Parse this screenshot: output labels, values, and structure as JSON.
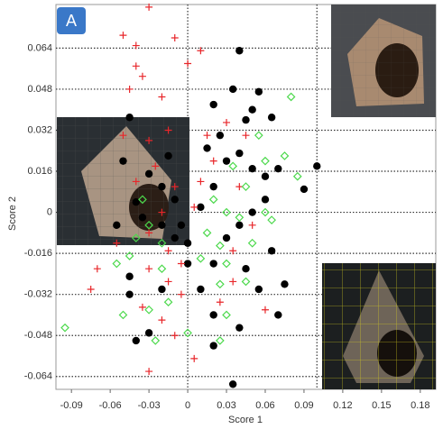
{
  "chart_data": {
    "type": "scatter",
    "panel_label": "A",
    "x_label": "Score 1",
    "y_label": "Score 2",
    "xlim": [
      -0.102,
      0.192
    ],
    "ylim": [
      -0.069,
      0.081
    ],
    "xticks": [
      -0.09,
      -0.06,
      -0.03,
      0,
      0.03,
      0.06,
      0.09,
      0.12,
      0.15,
      0.18
    ],
    "yticks": [
      -0.064,
      -0.048,
      -0.032,
      -0.016,
      0,
      0.016,
      0.032,
      0.048,
      0.064
    ],
    "grid": true,
    "xgrid": [
      0,
      0.1
    ],
    "series": [
      {
        "marker": "circle",
        "color": "#000000",
        "x": [
          0.04,
          0.02,
          0.035,
          0.055,
          0.05,
          0.065,
          0.045,
          -0.045,
          -0.05,
          -0.03,
          -0.02,
          -0.01,
          -0.04,
          -0.035,
          -0.02,
          -0.01,
          0,
          0.01,
          0.02,
          0.03,
          0.04,
          0.05,
          0.06,
          0.07,
          0.1,
          0.09,
          0.06,
          0.05,
          0.04,
          0.03,
          0.02,
          0.045,
          0.055,
          0.075,
          0.07,
          0.04,
          0.02,
          0.01,
          -0.02,
          -0.045,
          -0.045,
          -0.04,
          -0.03,
          0.02,
          0.035,
          0,
          -0.005,
          0.025,
          0.015,
          -0.015,
          0.065,
          -0.055
        ],
        "values": [
          0.063,
          0.042,
          0.048,
          0.047,
          0.04,
          0.037,
          0.036,
          0.037,
          0.02,
          0.015,
          0.01,
          0.005,
          0.004,
          -0.002,
          -0.005,
          -0.01,
          -0.012,
          0.002,
          0.01,
          0.02,
          0.023,
          0.017,
          0.014,
          0.017,
          0.018,
          0.009,
          0.005,
          0,
          -0.005,
          -0.01,
          -0.02,
          -0.022,
          -0.03,
          -0.028,
          -0.04,
          -0.045,
          -0.04,
          -0.03,
          -0.03,
          -0.025,
          -0.032,
          -0.05,
          -0.047,
          -0.052,
          -0.067,
          -0.02,
          -0.005,
          0.03,
          0.025,
          0.022,
          -0.015,
          -0.005
        ]
      },
      {
        "marker": "plus",
        "color": "#e8262a",
        "x": [
          -0.03,
          -0.05,
          -0.04,
          -0.01,
          -0.04,
          -0.035,
          0,
          0.01,
          -0.045,
          -0.02,
          -0.05,
          -0.03,
          -0.015,
          0.015,
          0.02,
          -0.025,
          -0.04,
          -0.01,
          0.01,
          0.04,
          0.005,
          -0.02,
          -0.03,
          -0.015,
          -0.005,
          -0.03,
          -0.015,
          -0.005,
          -0.035,
          -0.02,
          -0.01,
          0.005,
          -0.03,
          -0.07,
          -0.075,
          0.035,
          0.05,
          0.025,
          0.06,
          -0.055,
          0.03,
          0.045,
          0.035
        ],
        "values": [
          0.08,
          0.069,
          0.065,
          0.068,
          0.057,
          0.053,
          0.058,
          0.063,
          0.048,
          0.045,
          0.03,
          0.028,
          0.032,
          0.03,
          0.02,
          0.018,
          0.012,
          0.01,
          0.012,
          0.01,
          0.002,
          0,
          -0.008,
          -0.015,
          -0.02,
          -0.022,
          -0.027,
          -0.032,
          -0.037,
          -0.042,
          -0.048,
          -0.057,
          -0.062,
          -0.022,
          -0.03,
          -0.015,
          -0.005,
          -0.035,
          -0.038,
          -0.012,
          0.035,
          0.03,
          -0.027
        ]
      },
      {
        "marker": "diamond",
        "color": "#4cd94c",
        "x": [
          0.08,
          0.075,
          0.085,
          0.055,
          0.06,
          0.035,
          0.045,
          0.02,
          0.03,
          0.04,
          0.015,
          0.025,
          0.01,
          0.03,
          0.045,
          0.025,
          -0.02,
          -0.03,
          -0.035,
          -0.04,
          -0.045,
          -0.055,
          -0.02,
          -0.015,
          -0.03,
          -0.05,
          -0.095,
          0,
          0.03,
          0.025,
          -0.025,
          0.065,
          0.05,
          0.06
        ],
        "values": [
          0.045,
          0.022,
          0.014,
          0.03,
          0.02,
          0.018,
          0.01,
          0.005,
          0,
          -0.002,
          -0.008,
          -0.013,
          -0.018,
          -0.02,
          -0.027,
          -0.028,
          -0.012,
          -0.005,
          0.005,
          -0.01,
          -0.017,
          -0.02,
          -0.022,
          -0.035,
          -0.038,
          -0.04,
          -0.045,
          -0.047,
          -0.04,
          -0.05,
          -0.05,
          -0.003,
          -0.012,
          0
        ]
      }
    ]
  }
}
